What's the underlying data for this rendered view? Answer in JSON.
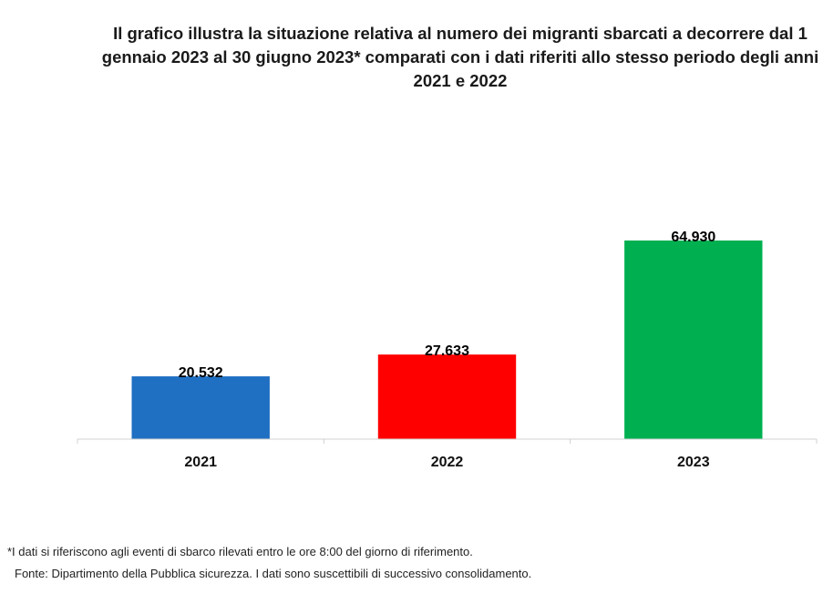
{
  "chart_data": {
    "type": "bar",
    "title": "Il grafico illustra la situazione relativa al numero dei migranti sbarcati a decorrere dal 1 gennaio 2023 al 30 giugno 2023* comparati con i dati riferiti allo stesso periodo degli anni 2021 e 2022",
    "xlabel": "",
    "ylabel": "",
    "categories": [
      "2021",
      "2022",
      "2023"
    ],
    "values": [
      20532,
      27633,
      64930
    ],
    "value_labels": [
      "20.532",
      "27.633",
      "64.930"
    ],
    "colors": [
      "#1f6fc2",
      "#ff0000",
      "#00b050"
    ],
    "ylim": [
      0,
      70000
    ],
    "grid": false,
    "legend": "none"
  },
  "footnotes": {
    "note": "*I dati si riferiscono agli eventi di sbarco rilevati entro le ore 8:00 del giorno di riferimento.",
    "source": "Fonte: Dipartimento della Pubblica sicurezza. I dati sono suscettibili di successivo consolidamento."
  }
}
